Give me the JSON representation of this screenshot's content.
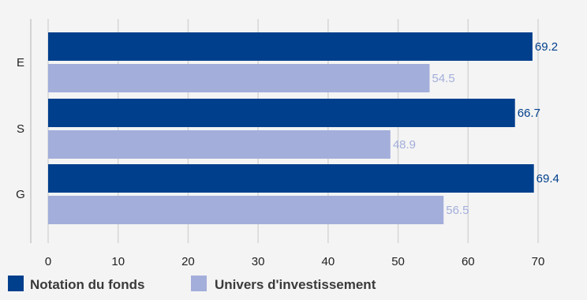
{
  "chart_data": {
    "type": "bar",
    "orientation": "horizontal",
    "categories": [
      "E",
      "S",
      "G"
    ],
    "series": [
      {
        "name": "Notation du fonds",
        "values": [
          69.2,
          66.7,
          69.4
        ],
        "color": "#003f8c"
      },
      {
        "name": "Univers d'investissement",
        "values": [
          54.5,
          48.9,
          56.5
        ],
        "color": "#a3aedb"
      }
    ],
    "xlim": [
      0,
      70
    ],
    "xticks": [
      0,
      10,
      20,
      30,
      40,
      50,
      60,
      70
    ],
    "grid": true,
    "legend": "bottom-left"
  }
}
